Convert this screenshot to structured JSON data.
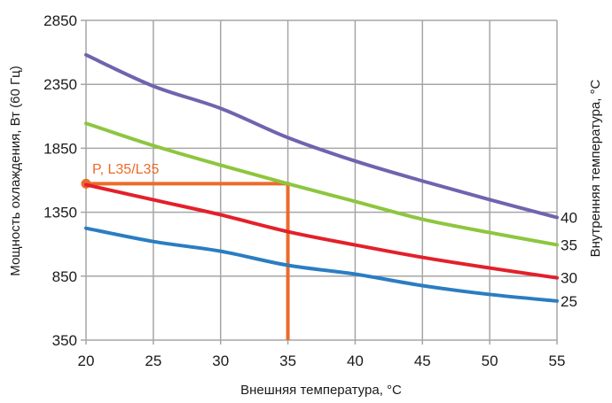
{
  "chart_data": {
    "type": "line",
    "title": "",
    "xlabel": "Внешняя температура, °C",
    "ylabel": "Мощность охлаждения, Вт (60 Гц)",
    "y2label": "Внутренняя температура, °C",
    "xlim": [
      20,
      55
    ],
    "ylim": [
      350,
      2850
    ],
    "x_ticks": [
      20,
      25,
      30,
      35,
      40,
      45,
      50,
      55
    ],
    "y_ticks": [
      350,
      850,
      1350,
      1850,
      2350,
      2850
    ],
    "grid": true,
    "x": [
      20,
      25,
      30,
      35,
      40,
      45,
      50,
      55
    ],
    "series": [
      {
        "name": "40",
        "label": "40",
        "color": "#7163ae",
        "values": [
          2580,
          2336,
          2162,
          1933,
          1750,
          1594,
          1448,
          1309
        ]
      },
      {
        "name": "35",
        "label": "35",
        "color": "#8dc63f",
        "values": [
          2045,
          1871,
          1718,
          1573,
          1434,
          1295,
          1191,
          1095
        ]
      },
      {
        "name": "30",
        "label": "30",
        "color": "#e3202a",
        "values": [
          1565,
          1447,
          1330,
          1198,
          1094,
          997,
          914,
          837
        ]
      },
      {
        "name": "25",
        "label": "25",
        "color": "#2b7dc2",
        "values": [
          1225,
          1121,
          1045,
          935,
          866,
          776,
          707,
          656
        ]
      }
    ],
    "annotations": [
      {
        "label": "P, L35/L35",
        "color": "#ed6a2a",
        "point": {
          "x": 20,
          "y": 1573
        },
        "corner": {
          "x": 35,
          "y": 1573
        },
        "drop_to": {
          "x": 35,
          "y": 350
        }
      }
    ]
  }
}
